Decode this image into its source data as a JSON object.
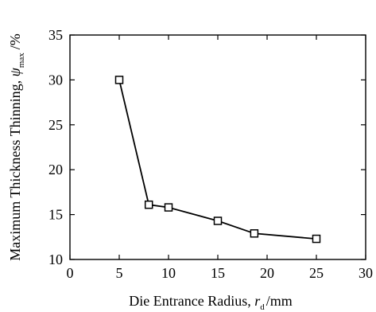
{
  "chart_data": {
    "type": "line",
    "title": "",
    "xlabel": {
      "main": "Die Entrance Radius, ",
      "symbol": "r",
      "subscript": "d",
      "unit": "/mm"
    },
    "ylabel": {
      "main": "Maximum Thickness Thinning, ",
      "symbol": "ψ",
      "subscript": "max",
      "unit": "/%"
    },
    "xlim": [
      0,
      30
    ],
    "ylim": [
      10,
      35
    ],
    "xticks": [
      0,
      5,
      10,
      15,
      20,
      25,
      30
    ],
    "yticks": [
      10,
      15,
      20,
      25,
      30,
      35
    ],
    "grid": false,
    "series": [
      {
        "marker": "open-square",
        "x": [
          5,
          8,
          10,
          15,
          18.7,
          25
        ],
        "y": [
          30.0,
          16.1,
          15.8,
          14.3,
          12.9,
          12.3
        ]
      }
    ]
  }
}
